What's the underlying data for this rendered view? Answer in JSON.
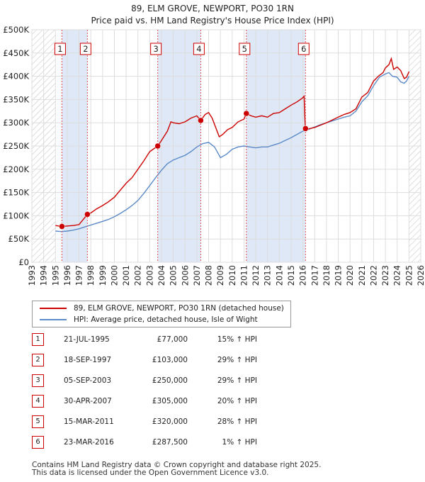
{
  "title_line1": "89, ELM GROVE, NEWPORT, PO30 1RN",
  "title_line2": "Price paid vs. HM Land Registry's House Price Index (HPI)",
  "chart_data": {
    "type": "line",
    "title": "89, ELM GROVE, NEWPORT, PO30 1RN — Price paid vs. HM Land Registry's House Price Index (HPI)",
    "xlim": [
      1993,
      2026
    ],
    "ylim": [
      0,
      500000
    ],
    "x_ticks": [
      1993,
      1994,
      1995,
      1996,
      1997,
      1998,
      1999,
      2000,
      2001,
      2002,
      2003,
      2004,
      2005,
      2006,
      2007,
      2008,
      2009,
      2010,
      2011,
      2012,
      2013,
      2014,
      2015,
      2016,
      2017,
      2018,
      2019,
      2020,
      2021,
      2022,
      2023,
      2024,
      2025,
      2026
    ],
    "y_ticks": [
      {
        "value": 0,
        "label": "£0"
      },
      {
        "value": 50000,
        "label": "£50K"
      },
      {
        "value": 100000,
        "label": "£100K"
      },
      {
        "value": 150000,
        "label": "£150K"
      },
      {
        "value": 200000,
        "label": "£200K"
      },
      {
        "value": 250000,
        "label": "£250K"
      },
      {
        "value": 300000,
        "label": "£300K"
      },
      {
        "value": 350000,
        "label": "£350K"
      },
      {
        "value": 400000,
        "label": "£400K"
      },
      {
        "value": 450000,
        "label": "£450K"
      },
      {
        "value": 500000,
        "label": "£500K"
      }
    ],
    "data_start": 1995.0,
    "data_end": 2025.0,
    "series": [
      {
        "name": "89, ELM GROVE, NEWPORT, PO30 1RN (detached house)",
        "color": "#cc0000",
        "points": [
          [
            1995.0,
            79000
          ],
          [
            1995.55,
            77000
          ],
          [
            1996.0,
            78000
          ],
          [
            1996.5,
            79000
          ],
          [
            1997.0,
            81000
          ],
          [
            1997.71,
            103000
          ],
          [
            1998.0,
            106000
          ],
          [
            1998.5,
            115000
          ],
          [
            1999.0,
            122000
          ],
          [
            1999.5,
            130000
          ],
          [
            2000.0,
            140000
          ],
          [
            2000.5,
            155000
          ],
          [
            2001.0,
            170000
          ],
          [
            2001.5,
            182000
          ],
          [
            2002.0,
            200000
          ],
          [
            2002.5,
            218000
          ],
          [
            2003.0,
            238000
          ],
          [
            2003.68,
            250000
          ],
          [
            2004.0,
            262000
          ],
          [
            2004.5,
            282000
          ],
          [
            2004.8,
            302000
          ],
          [
            2005.0,
            300000
          ],
          [
            2005.5,
            298000
          ],
          [
            2006.0,
            302000
          ],
          [
            2006.5,
            310000
          ],
          [
            2007.0,
            315000
          ],
          [
            2007.33,
            305000
          ],
          [
            2007.7,
            318000
          ],
          [
            2008.0,
            322000
          ],
          [
            2008.3,
            310000
          ],
          [
            2008.6,
            290000
          ],
          [
            2008.9,
            270000
          ],
          [
            2009.2,
            275000
          ],
          [
            2009.6,
            285000
          ],
          [
            2010.0,
            290000
          ],
          [
            2010.5,
            302000
          ],
          [
            2011.0,
            308000
          ],
          [
            2011.2,
            320000
          ],
          [
            2011.6,
            315000
          ],
          [
            2012.0,
            312000
          ],
          [
            2012.5,
            315000
          ],
          [
            2013.0,
            312000
          ],
          [
            2013.5,
            320000
          ],
          [
            2014.0,
            322000
          ],
          [
            2014.5,
            330000
          ],
          [
            2015.0,
            338000
          ],
          [
            2015.5,
            345000
          ],
          [
            2015.9,
            352000
          ],
          [
            2016.1,
            357000
          ],
          [
            2016.2,
            287500
          ],
          [
            2016.5,
            287000
          ],
          [
            2017.0,
            290000
          ],
          [
            2017.5,
            295000
          ],
          [
            2018.0,
            300000
          ],
          [
            2018.5,
            306000
          ],
          [
            2019.0,
            312000
          ],
          [
            2019.5,
            318000
          ],
          [
            2020.0,
            322000
          ],
          [
            2020.5,
            330000
          ],
          [
            2021.0,
            355000
          ],
          [
            2021.5,
            365000
          ],
          [
            2022.0,
            390000
          ],
          [
            2022.4,
            400000
          ],
          [
            2022.8,
            408000
          ],
          [
            2023.0,
            418000
          ],
          [
            2023.3,
            425000
          ],
          [
            2023.5,
            438000
          ],
          [
            2023.7,
            415000
          ],
          [
            2024.0,
            420000
          ],
          [
            2024.3,
            412000
          ],
          [
            2024.6,
            395000
          ],
          [
            2024.8,
            398000
          ],
          [
            2025.0,
            410000
          ]
        ]
      },
      {
        "name": "HPI: Average price, detached house, Isle of Wight",
        "color": "#5b8ac8",
        "points": [
          [
            1995.0,
            67000
          ],
          [
            1995.5,
            66000
          ],
          [
            1996.0,
            67000
          ],
          [
            1996.5,
            69000
          ],
          [
            1997.0,
            72000
          ],
          [
            1997.5,
            76000
          ],
          [
            1998.0,
            80000
          ],
          [
            1998.5,
            84000
          ],
          [
            1999.0,
            88000
          ],
          [
            1999.5,
            92000
          ],
          [
            2000.0,
            98000
          ],
          [
            2000.5,
            105000
          ],
          [
            2001.0,
            113000
          ],
          [
            2001.5,
            122000
          ],
          [
            2002.0,
            133000
          ],
          [
            2002.5,
            148000
          ],
          [
            2003.0,
            165000
          ],
          [
            2003.5,
            182000
          ],
          [
            2004.0,
            198000
          ],
          [
            2004.5,
            212000
          ],
          [
            2005.0,
            220000
          ],
          [
            2005.5,
            225000
          ],
          [
            2006.0,
            230000
          ],
          [
            2006.5,
            238000
          ],
          [
            2007.0,
            248000
          ],
          [
            2007.5,
            255000
          ],
          [
            2008.0,
            258000
          ],
          [
            2008.5,
            248000
          ],
          [
            2009.0,
            225000
          ],
          [
            2009.5,
            232000
          ],
          [
            2010.0,
            243000
          ],
          [
            2010.5,
            248000
          ],
          [
            2011.0,
            250000
          ],
          [
            2011.5,
            248000
          ],
          [
            2012.0,
            246000
          ],
          [
            2012.5,
            248000
          ],
          [
            2013.0,
            248000
          ],
          [
            2013.5,
            252000
          ],
          [
            2014.0,
            256000
          ],
          [
            2014.5,
            262000
          ],
          [
            2015.0,
            268000
          ],
          [
            2015.5,
            275000
          ],
          [
            2016.0,
            282000
          ],
          [
            2016.5,
            286000
          ],
          [
            2017.0,
            291000
          ],
          [
            2017.5,
            296000
          ],
          [
            2018.0,
            300000
          ],
          [
            2018.5,
            304000
          ],
          [
            2019.0,
            308000
          ],
          [
            2019.5,
            312000
          ],
          [
            2020.0,
            315000
          ],
          [
            2020.5,
            325000
          ],
          [
            2021.0,
            345000
          ],
          [
            2021.5,
            358000
          ],
          [
            2022.0,
            380000
          ],
          [
            2022.5,
            398000
          ],
          [
            2023.0,
            405000
          ],
          [
            2023.3,
            408000
          ],
          [
            2023.6,
            400000
          ],
          [
            2024.0,
            398000
          ],
          [
            2024.3,
            388000
          ],
          [
            2024.6,
            385000
          ],
          [
            2024.8,
            390000
          ],
          [
            2025.0,
            400000
          ]
        ]
      }
    ],
    "sales": [
      {
        "num": "1",
        "year": 1995.55,
        "price": 77000
      },
      {
        "num": "2",
        "year": 1997.71,
        "price": 103000
      },
      {
        "num": "3",
        "year": 2003.68,
        "price": 250000
      },
      {
        "num": "4",
        "year": 2007.33,
        "price": 305000
      },
      {
        "num": "5",
        "year": 2011.2,
        "price": 320000
      },
      {
        "num": "6",
        "year": 2016.22,
        "price": 287500
      }
    ],
    "shaded_periods": [
      [
        1995.55,
        1997.71
      ],
      [
        2003.68,
        2007.33
      ],
      [
        2011.2,
        2016.22
      ]
    ]
  },
  "legend": {
    "property_label": "89, ELM GROVE, NEWPORT, PO30 1RN (detached house)",
    "hpi_label": "HPI: Average price, detached house, Isle of Wight",
    "property_color": "#cc0000",
    "hpi_color": "#5b8ac8"
  },
  "sales_table": [
    {
      "num": "1",
      "date": "21-JUL-1995",
      "price": "£77,000",
      "hpi": "15% ↑ HPI"
    },
    {
      "num": "2",
      "date": "18-SEP-1997",
      "price": "£103,000",
      "hpi": "29% ↑ HPI"
    },
    {
      "num": "3",
      "date": "05-SEP-2003",
      "price": "£250,000",
      "hpi": "29% ↑ HPI"
    },
    {
      "num": "4",
      "date": "30-APR-2007",
      "price": "£305,000",
      "hpi": "20% ↑ HPI"
    },
    {
      "num": "5",
      "date": "15-MAR-2011",
      "price": "£320,000",
      "hpi": "28% ↑ HPI"
    },
    {
      "num": "6",
      "date": "23-MAR-2016",
      "price": "£287,500",
      "hpi": "1% ↑ HPI"
    }
  ],
  "footer": {
    "line1": "Contains HM Land Registry data © Crown copyright and database right 2025.",
    "line2": "This data is licensed under the Open Government Licence v3.0."
  }
}
